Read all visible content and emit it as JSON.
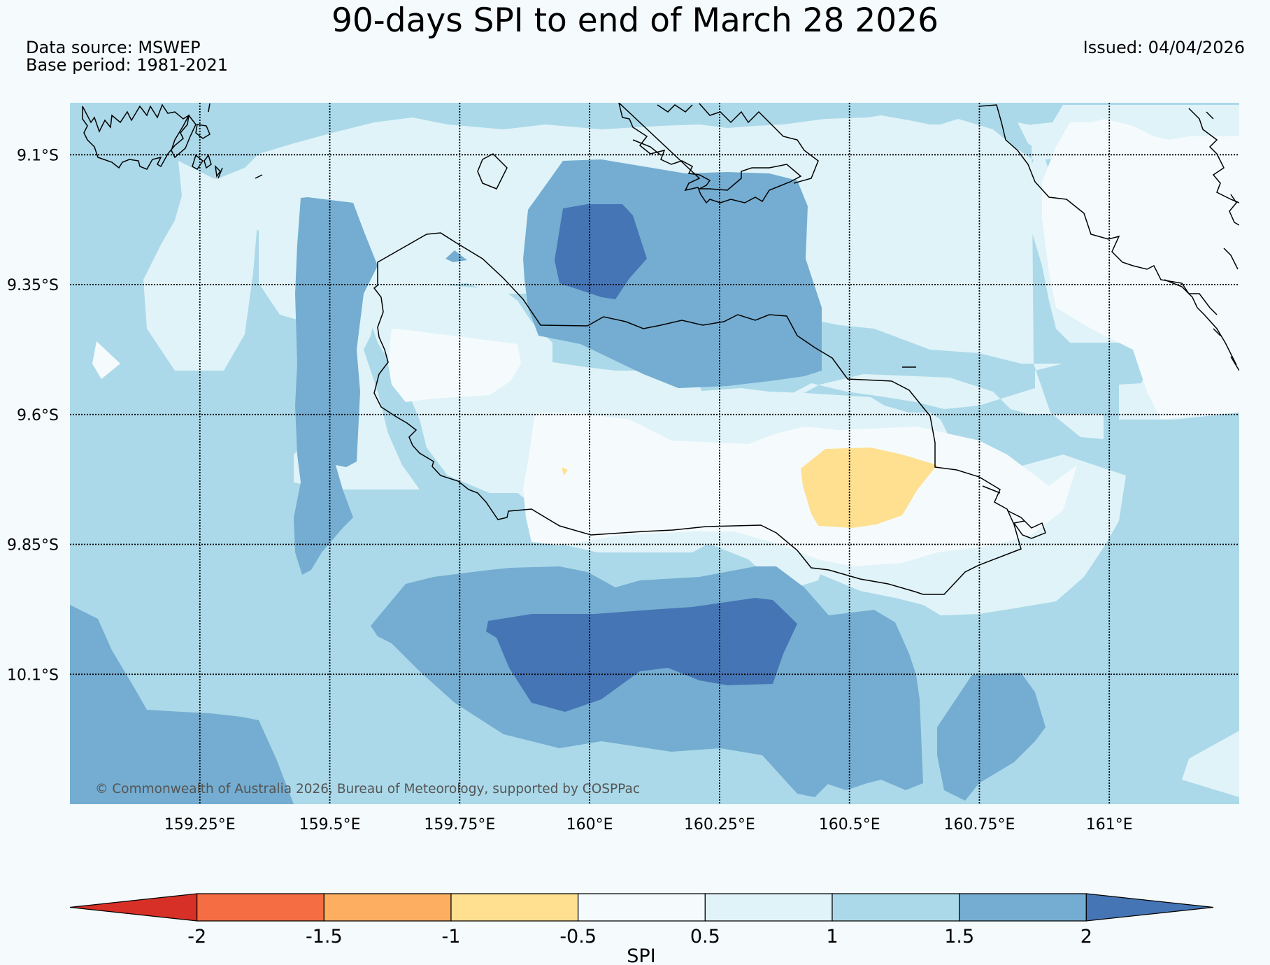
{
  "header": {
    "title": "90-days SPI to end of March 28 2026",
    "data_source": "Data source: MSWEP",
    "base_period": "Base period: 1981-2021",
    "issued": "Issued: 04/04/2026"
  },
  "map": {
    "lon_range": [
      159.0,
      161.25
    ],
    "lat_range": [
      -10.35,
      -9.0
    ],
    "lat_ticks": [
      {
        "value": -9.1,
        "label": "9.1°S"
      },
      {
        "value": -9.35,
        "label": "9.35°S"
      },
      {
        "value": -9.6,
        "label": "9.6°S"
      },
      {
        "value": -9.85,
        "label": "9.85°S"
      },
      {
        "value": -10.1,
        "label": "10.1°S"
      }
    ],
    "lon_ticks": [
      {
        "value": 159.25,
        "label": "159.25°E"
      },
      {
        "value": 159.5,
        "label": "159.5°E"
      },
      {
        "value": 159.75,
        "label": "159.75°E"
      },
      {
        "value": 160.0,
        "label": "160°E"
      },
      {
        "value": 160.25,
        "label": "160.25°E"
      },
      {
        "value": 160.5,
        "label": "160.5°E"
      },
      {
        "value": 160.75,
        "label": "160.75°E"
      },
      {
        "value": 161.0,
        "label": "161°E"
      }
    ],
    "gridlines": true,
    "copyright": "© Commonwealth of Australia 2026, Bureau of Meteorology, supported by COSPPac"
  },
  "colorbar": {
    "label": "SPI",
    "ticks": [
      "-2",
      "-1.5",
      "-1",
      "-0.5",
      "0.5",
      "1",
      "1.5",
      "2"
    ],
    "colors": [
      "#d73027",
      "#f46d43",
      "#fdae61",
      "#fee090",
      "#f5fbfd",
      "#e0f3f8",
      "#abd9e9",
      "#74add1",
      "#4575b4"
    ],
    "extend": "both"
  }
}
